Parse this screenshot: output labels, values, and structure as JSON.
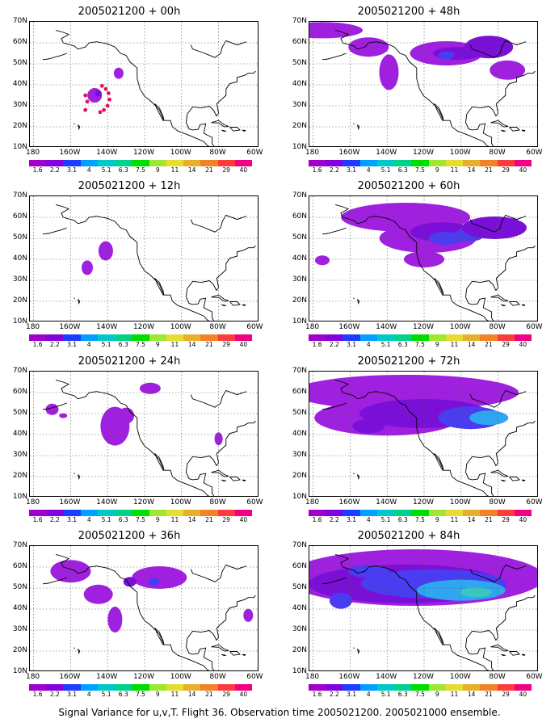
{
  "panels": [
    {
      "title": "2005021200 + 00h"
    },
    {
      "title": "2005021200 + 48h"
    },
    {
      "title": "2005021200 + 12h"
    },
    {
      "title": "2005021200 + 60h"
    },
    {
      "title": "2005021200 + 24h"
    },
    {
      "title": "2005021200 + 72h"
    },
    {
      "title": "2005021200 + 36h"
    },
    {
      "title": "2005021200 + 84h"
    }
  ],
  "lat_labels": [
    "70N",
    "60N",
    "50N",
    "40N",
    "30N",
    "20N",
    "10N"
  ],
  "lon_labels": [
    "180",
    "160W",
    "140W",
    "120W",
    "100W",
    "80W",
    "60W"
  ],
  "colorbar": {
    "levels": [
      "1.6",
      "2.2",
      "3.1",
      "4",
      "5.1",
      "6.3",
      "7.5",
      "9",
      "11",
      "14",
      "21",
      "29",
      "40"
    ],
    "colors": [
      "#a000c8",
      "#8200dc",
      "#1e3cff",
      "#00a0ff",
      "#00c8c8",
      "#00d28c",
      "#00dc00",
      "#a0e632",
      "#e6dc32",
      "#e6af2d",
      "#f08228",
      "#fa3c3c",
      "#f00082"
    ]
  },
  "caption": "Signal Variance for u,v,T. Flight 36. Observation time 2005021200. 2005021000 ensemble."
}
